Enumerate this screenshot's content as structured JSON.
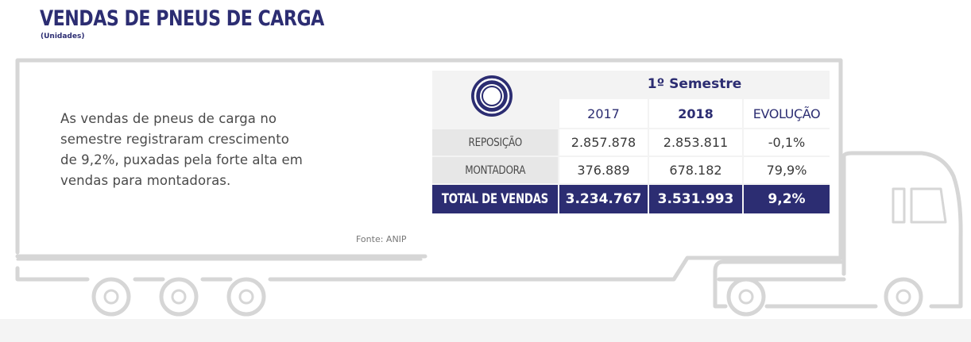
{
  "header": {
    "title": "VENDAS DE PNEUS DE CARGA",
    "subtitle": "(Unidades)"
  },
  "description": {
    "lines": [
      "As vendas de pneus de carga no",
      "semestre registraram crescimento",
      "de 9,2%, puxadas pela forte alta em",
      "vendas para montadoras."
    ]
  },
  "source": "Fonte: ANIP",
  "table": {
    "period": "1º Semestre",
    "columns": [
      "2017",
      "2018",
      "EVOLUÇÃO"
    ],
    "rows": [
      {
        "label": "REPOSIÇÃO",
        "values": [
          "2.857.878",
          "2.853.811",
          "-0,1%"
        ]
      },
      {
        "label": "MONTADORA",
        "values": [
          "376.889",
          "678.182",
          "79,9%"
        ]
      }
    ],
    "total": {
      "label": "TOTAL DE VENDAS",
      "values": [
        "3.234.767",
        "3.531.993",
        "9,2%"
      ]
    }
  },
  "colors": {
    "brand": "#2c2d72",
    "label_bg": "#e7e7e7",
    "truck_outline": "#d4d4d4"
  },
  "icons": [
    "tire-icon",
    "truck-illustration"
  ]
}
